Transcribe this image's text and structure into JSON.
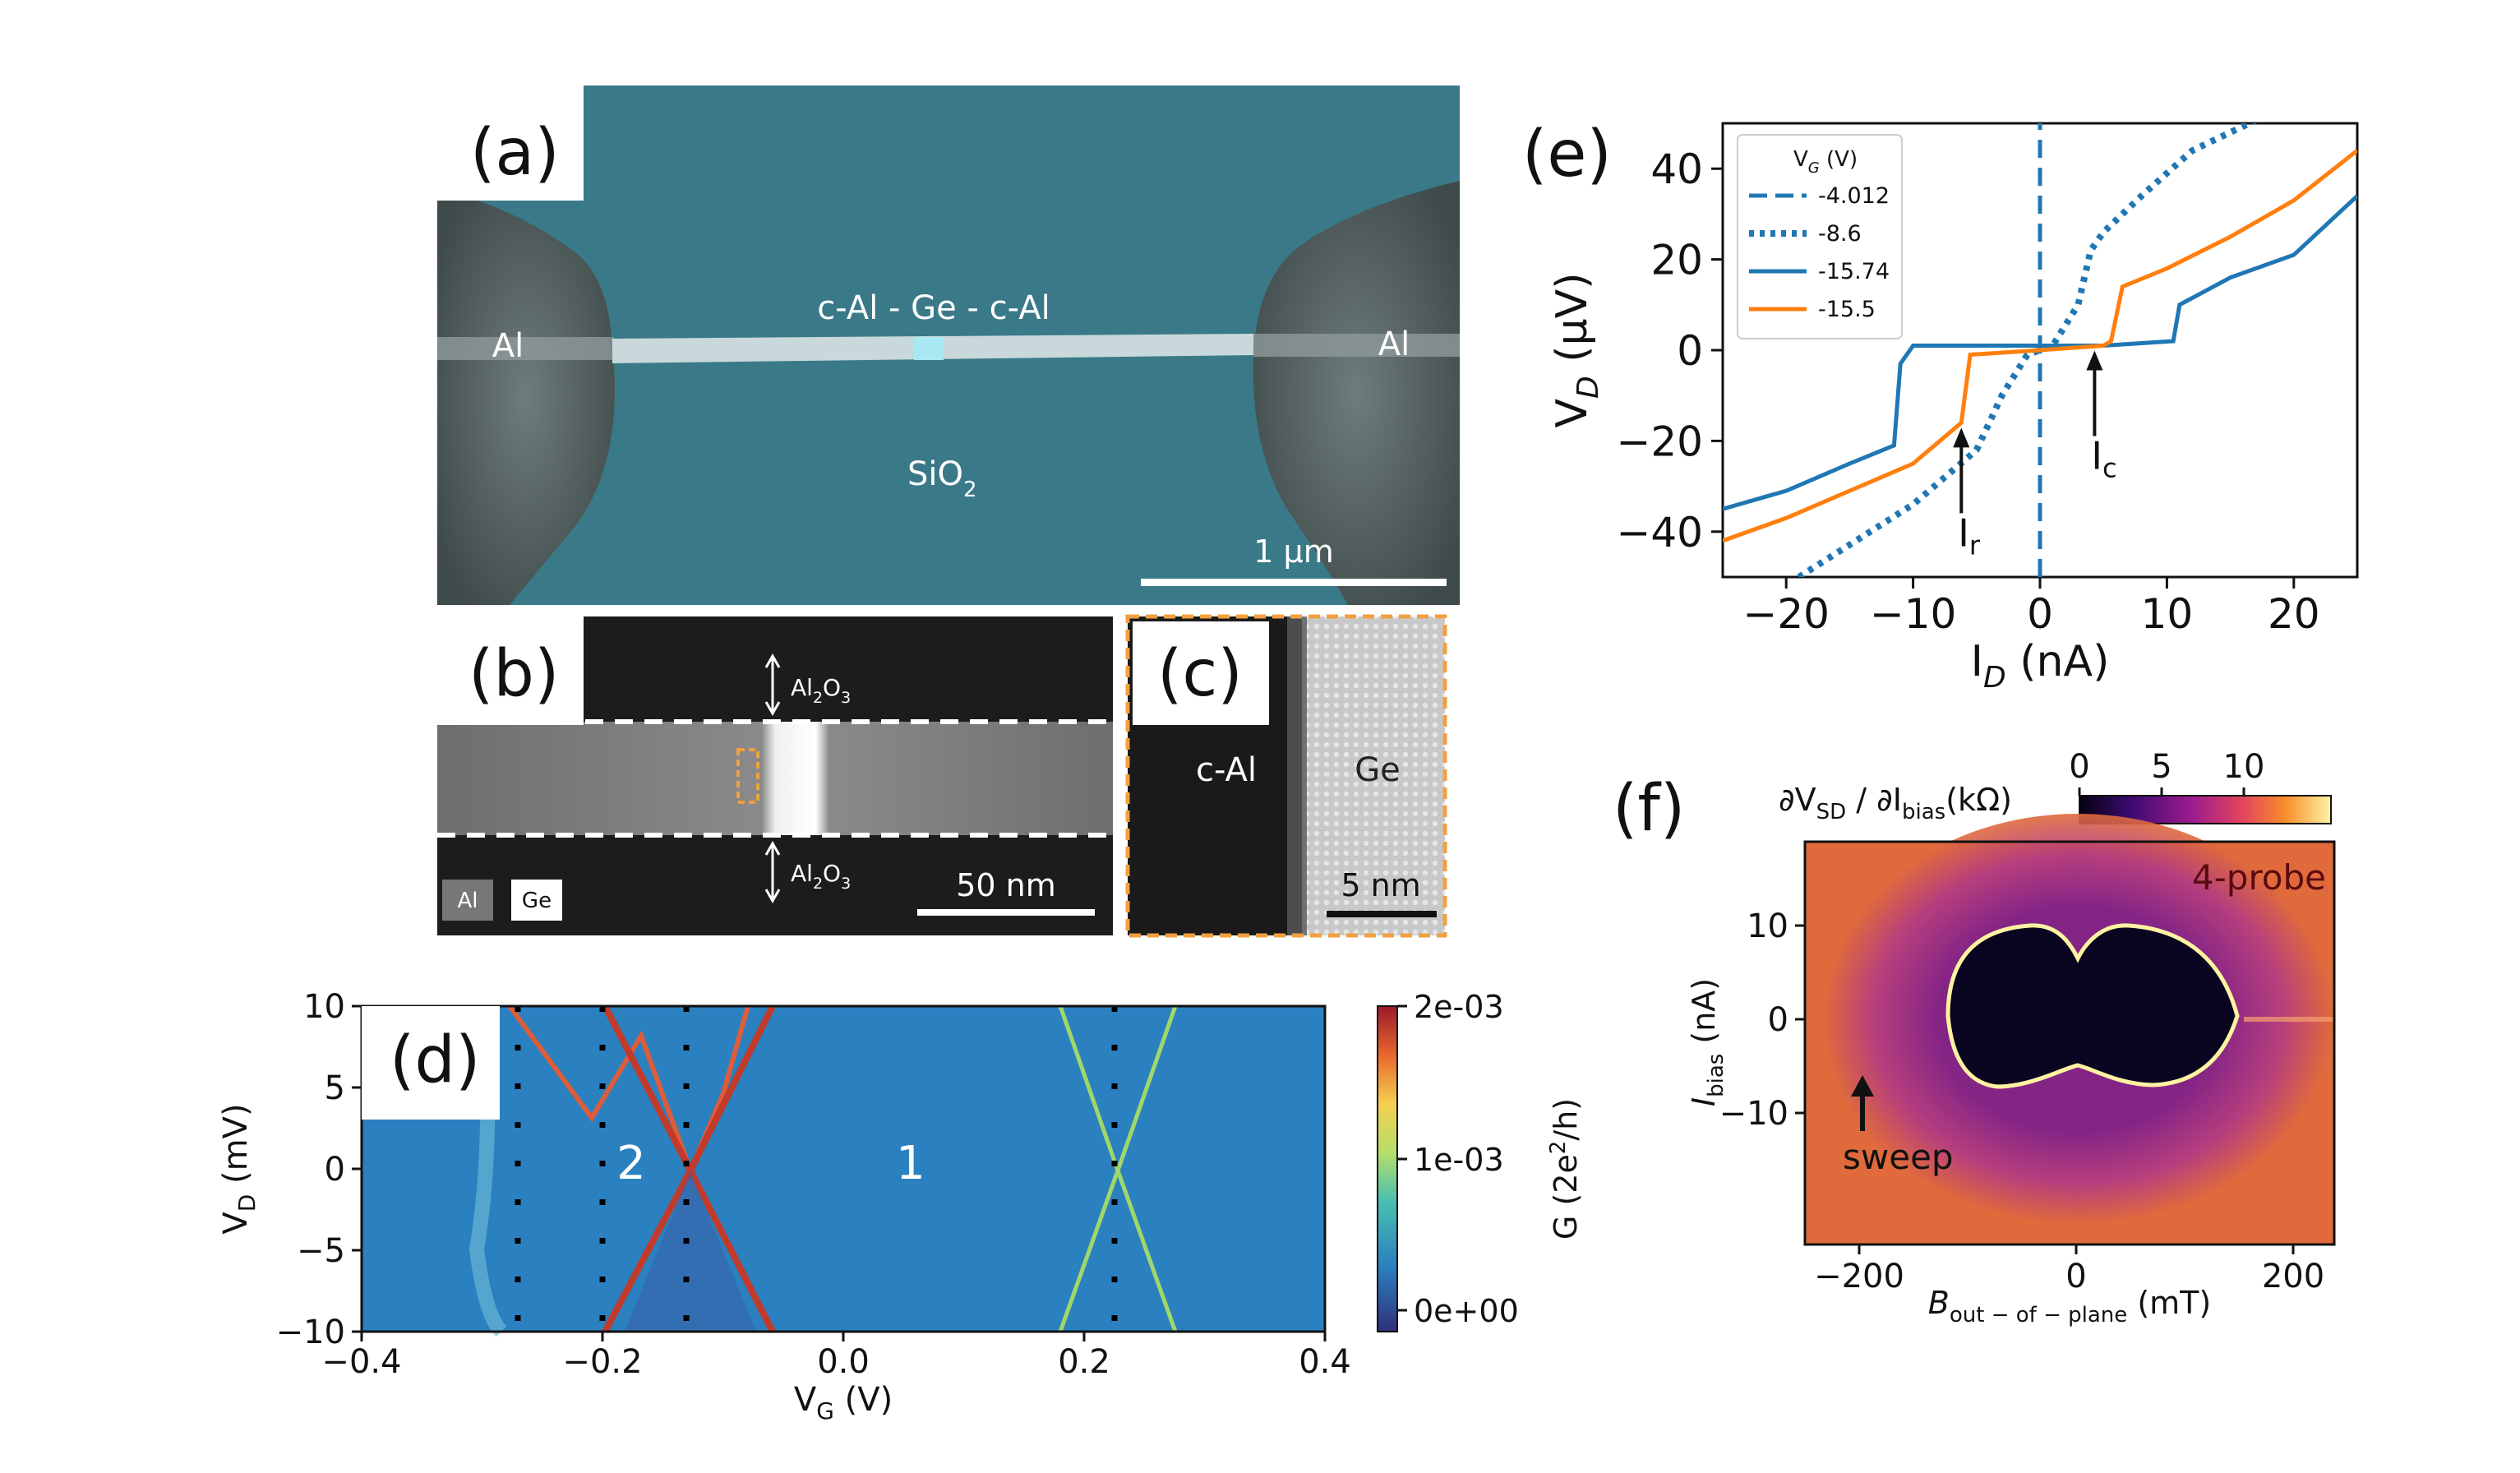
{
  "panel_a": {
    "tag": "(a)",
    "device": "c-Al - Ge - c-Al",
    "left_lead": "Al",
    "right_lead": "Al",
    "substrate": "SiO",
    "substrate_sub": "2",
    "scale": "1 μm",
    "colors": {
      "bg": "#3a7a88",
      "lead": "#5c6a6a",
      "wire": "#c9d8da",
      "ge": "#a9e8f2"
    }
  },
  "panel_b": {
    "tag": "(b)",
    "oxide_top": "Al",
    "oxide_top_sub1": "2",
    "oxide_top_o": "O",
    "oxide_top_sub2": "3",
    "oxide_bottom": "Al",
    "oxide_bottom_sub1": "2",
    "oxide_bottom_o": "O",
    "oxide_bottom_sub2": "3",
    "legend_al": "Al",
    "legend_ge": "Ge",
    "scale": "50 nm"
  },
  "panel_c": {
    "tag": "(c)",
    "left_label": "c-Al",
    "right_label": "Ge",
    "scale": "5 nm"
  },
  "panel_d": {
    "tag": "(d)",
    "region_2": "2",
    "region_1": "1",
    "xlabel_v": "V",
    "xlabel_sub": "G",
    "xlabel_unit": " (V)",
    "ylabel_v": "V",
    "ylabel_sub": "D",
    "ylabel_unit": " (mV)",
    "x_ticks": [
      "−0.4",
      "−0.2",
      "0.0",
      "0.2",
      "0.4"
    ],
    "y_ticks": [
      "10",
      "5",
      "0",
      "−5",
      "−10"
    ],
    "cbar_ticks": [
      "2e-03",
      "1e-03",
      "0e+00"
    ],
    "cbar_label": "G (2e",
    "cbar_label_sup": "2",
    "cbar_label_end": "/h)",
    "dotted_lines_vg": [
      -0.27,
      -0.2,
      -0.13,
      0.225
    ],
    "colors": {
      "bg": "#2b80c0",
      "peak": "#c23a2a",
      "green": "#9fd86a"
    }
  },
  "chart_data": {
    "type": "line",
    "title": "",
    "xlabel": "I_D (nA)",
    "ylabel": "V_D (μV)",
    "xlim": [
      -25,
      25
    ],
    "ylim": [
      -50,
      50
    ],
    "x_ticks": [
      "−20",
      "−10",
      "0",
      "10",
      "20"
    ],
    "y_ticks": [
      "40",
      "20",
      "0",
      "−20",
      "−40"
    ],
    "legend_title": "V",
    "legend_title_sub": "G",
    "legend_title_unit": " (V)",
    "series": [
      {
        "name": "-4.012",
        "style": "dashed",
        "color": "#1f77b4",
        "x": [
          0,
          0
        ],
        "y": [
          -50,
          50
        ]
      },
      {
        "name": "-8.6",
        "style": "dotted",
        "color": "#1f77b4",
        "x": [
          -19,
          -10,
          -5,
          -3,
          -1,
          1,
          3,
          4,
          5,
          8,
          12,
          18
        ],
        "y": [
          -50,
          -34,
          -22,
          -10,
          -1,
          1,
          10,
          22,
          26,
          34,
          44,
          52
        ]
      },
      {
        "name": "-15.74",
        "style": "solid",
        "color": "#1f77b4",
        "x": [
          -25,
          -20,
          -15,
          -11.5,
          -11,
          -10,
          -5,
          0,
          5,
          10.5,
          11,
          15,
          20,
          25
        ],
        "y": [
          -35,
          -31,
          -25,
          -21,
          -3,
          1,
          1,
          1,
          1,
          2,
          10,
          16,
          21,
          34
        ]
      },
      {
        "name": "-15.5",
        "style": "solid",
        "color": "#ff7f0e",
        "x": [
          -25,
          -20,
          -15,
          -10,
          -6.2,
          -5.5,
          0,
          5,
          5.6,
          6.5,
          10,
          15,
          20,
          25
        ],
        "y": [
          -42,
          -37,
          -31,
          -25,
          -16,
          -1,
          0,
          1,
          2,
          14,
          18,
          25,
          33,
          44
        ]
      }
    ],
    "annotations": [
      {
        "text": "I",
        "sub": "r",
        "x": -6.2,
        "y": -16
      },
      {
        "text": "I",
        "sub": "c",
        "x": 4.3,
        "y": 1
      }
    ]
  },
  "panel_e": {
    "tag": "(e)",
    "ylabel_v": "V",
    "ylabel_sub": "D",
    "ylabel_unit": " (μV)",
    "xlabel_v": "I",
    "xlabel_sub": "D",
    "xlabel_unit": " (nA)"
  },
  "panel_f": {
    "tag": "(f)",
    "cbar_title_a": "∂V",
    "cbar_title_sub1": "SD",
    "cbar_title_b": " / ∂I",
    "cbar_title_sub2": "bias",
    "cbar_title_c": "(kΩ)",
    "cbar_ticks": [
      "0",
      "5",
      "10"
    ],
    "probe": "4-probe",
    "sweep": "sweep",
    "ylabel_v": "I",
    "ylabel_sub": "bias",
    "ylabel_unit": " (nA)",
    "xlabel_v": "B",
    "xlabel_sub": "out − of − plane",
    "xlabel_unit": " (mT)",
    "x_ticks": [
      "−200",
      "0",
      "200"
    ],
    "y_ticks": [
      "10",
      "0",
      "−10"
    ],
    "colors": {
      "outer": "#e06a3c",
      "purple": "#7a1d8e",
      "inner": "#0a0520",
      "rim": "#fff2a0"
    }
  }
}
